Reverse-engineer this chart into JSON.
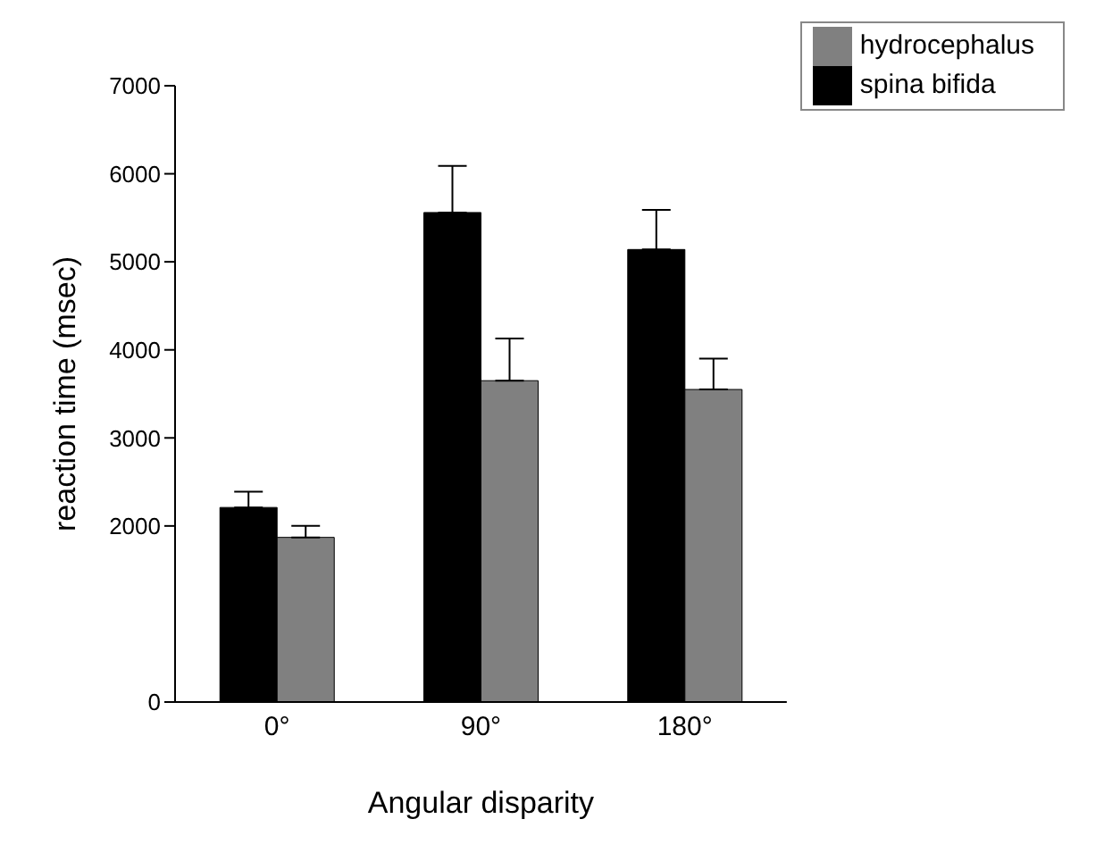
{
  "chart_data": {
    "type": "bar",
    "xlabel": "Angular disparity",
    "ylabel": "reaction time (msec)",
    "categories": [
      "0°",
      "90°",
      "180°"
    ],
    "series": [
      {
        "name": "spina bifida",
        "color": "#000000",
        "values": [
          2210,
          5560,
          5140
        ],
        "errors": [
          [
            2210,
            2390
          ],
          [
            5560,
            6090
          ],
          [
            5140,
            5590
          ]
        ]
      },
      {
        "name": "hydrocephalus",
        "color": "#808080",
        "values": [
          1870,
          3650,
          3550
        ],
        "errors": [
          [
            1870,
            2000
          ],
          [
            3650,
            4130
          ],
          [
            3550,
            3900
          ]
        ]
      }
    ],
    "ylim": [
      0,
      7000
    ],
    "yticks": [
      0,
      2000,
      3000,
      4000,
      5000,
      6000,
      7000
    ],
    "grid": false,
    "legend": "top right"
  }
}
